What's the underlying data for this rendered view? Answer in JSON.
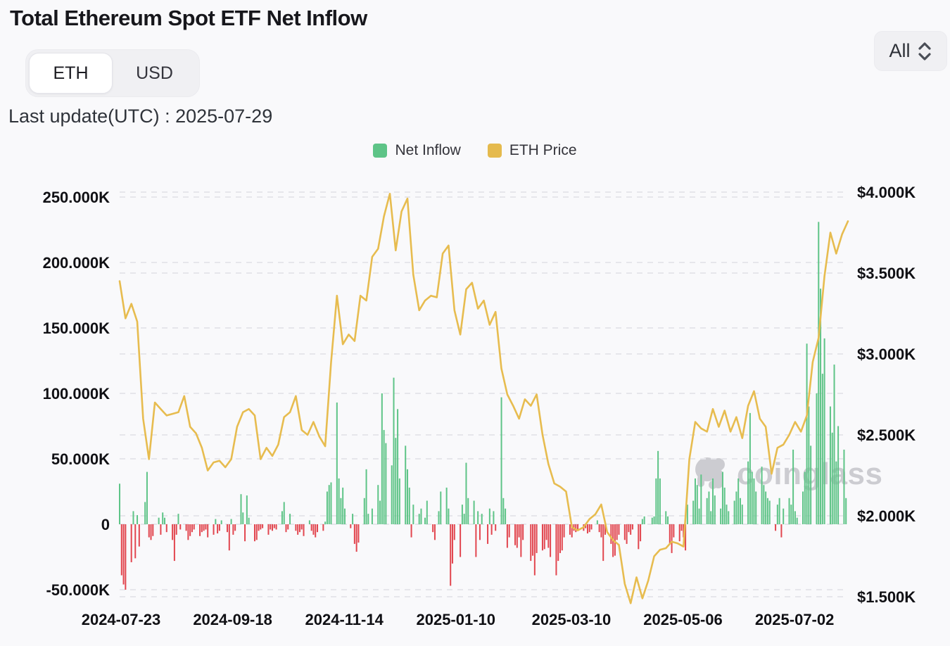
{
  "header": {
    "title": "Total Ethereum Spot ETF Net Inflow"
  },
  "controls": {
    "unit_toggle": {
      "options": [
        "ETH",
        "USD"
      ],
      "active": "ETH"
    },
    "range_select": {
      "value": "All"
    }
  },
  "status": {
    "last_update": "Last update(UTC) : 2025-07-29"
  },
  "legend": {
    "items": [
      {
        "label": "Net Inflow",
        "color": "#5ec487"
      },
      {
        "label": "ETH Price",
        "color": "#e5ba4d"
      }
    ]
  },
  "watermark": {
    "text": "coinglass"
  },
  "colors": {
    "inflow_positive": "#5ec487",
    "inflow_negative": "#e2464f",
    "price_line": "#e7bc4f",
    "gridline": "#e6e6eb",
    "axis_text": "#101014"
  },
  "chart_data": {
    "type": "bar+line",
    "title": "Total Ethereum Spot ETF Net Inflow",
    "start_date": "2024-07-23",
    "end_date": "2025-07-29",
    "grid": {
      "dashed": true,
      "color": "#e6e6eb"
    },
    "legend_position": "top-center",
    "x_tick_labels": [
      "2024-07-23",
      "2024-09-18",
      "2024-11-14",
      "2025-01-10",
      "2025-03-10",
      "2025-05-06",
      "2025-07-02"
    ],
    "x_tick_day_offsets": [
      0,
      57,
      114,
      171,
      230,
      287,
      344
    ],
    "left_axis": {
      "name": "Net Inflow",
      "unit": "thousand ETH",
      "tick_labels": [
        "250.000K",
        "200.000K",
        "150.000K",
        "100.000K",
        "50.000K",
        "0",
        "-50.000K"
      ],
      "tick_values": [
        250,
        200,
        150,
        100,
        50,
        0,
        -50
      ],
      "range": [
        -50,
        250
      ]
    },
    "right_axis": {
      "name": "ETH Price",
      "unit": "$K",
      "tick_labels": [
        "$4.000K",
        "$3.500K",
        "$3.000K",
        "$2.500K",
        "$2.000K",
        "$1.500K"
      ],
      "tick_values": [
        4.0,
        3.5,
        3.0,
        2.5,
        2.0,
        1.5
      ],
      "range": [
        1.5,
        4.0
      ]
    },
    "series": [
      {
        "name": "Net Inflow",
        "type": "bar",
        "unit": "thousand ETH",
        "sampling": "daily (weekends zero), values estimated from chart",
        "values": [
          31,
          -39,
          -46,
          -50,
          0,
          0,
          -29,
          10,
          -26,
          7,
          -17,
          0,
          0,
          17,
          40,
          -10,
          -12,
          -9,
          0,
          0,
          5,
          -8,
          9,
          5,
          -6,
          0,
          0,
          -12,
          -28,
          -8,
          8,
          -4,
          0,
          0,
          -5,
          -12,
          -9,
          -6,
          -4,
          0,
          0,
          -9,
          -6,
          -5,
          -4,
          -10,
          0,
          0,
          -8,
          4,
          -7,
          -5,
          3,
          0,
          0,
          -6,
          -20,
          4,
          -8,
          -5,
          0,
          0,
          23,
          9,
          -13,
          22,
          5,
          0,
          0,
          -13,
          -12,
          -5,
          -4,
          -3,
          0,
          0,
          -8,
          -4,
          -5,
          -3,
          -4,
          0,
          0,
          10,
          17,
          -6,
          -4,
          8,
          0,
          0,
          -5,
          -8,
          -6,
          -4,
          -9,
          0,
          0,
          3,
          -5,
          -8,
          -10,
          -6,
          0,
          0,
          -5,
          2,
          25,
          30,
          32,
          0,
          0,
          93,
          35,
          20,
          28,
          12,
          0,
          0,
          -3,
          8,
          -15,
          -21,
          -14,
          0,
          0,
          20,
          42,
          8,
          0,
          12,
          0,
          0,
          30,
          18,
          100,
          72,
          62,
          0,
          0,
          45,
          112,
          66,
          88,
          35,
          0,
          0,
          60,
          42,
          28,
          -10,
          15,
          0,
          0,
          8,
          12,
          0,
          5,
          18,
          0,
          0,
          -6,
          -12,
          0,
          10,
          25,
          0,
          0,
          28,
          12,
          -47,
          -30,
          -12,
          0,
          0,
          -25,
          15,
          8,
          47,
          20,
          0,
          0,
          18,
          -25,
          10,
          -12,
          8,
          0,
          0,
          -15,
          12,
          -8,
          10,
          -5,
          0,
          0,
          97,
          20,
          12,
          -18,
          -10,
          0,
          0,
          -16,
          -18,
          -10,
          -25,
          -12,
          0,
          0,
          0,
          -28,
          -24,
          -39,
          -22,
          0,
          0,
          -20,
          -19,
          -12,
          -18,
          -25,
          0,
          0,
          -39,
          -28,
          -22,
          -20,
          -10,
          0,
          0,
          -8,
          -10,
          -5,
          -6,
          -4,
          0,
          0,
          -5,
          -3,
          -7,
          -6,
          -4,
          0,
          0,
          3,
          -6,
          -10,
          -28,
          -8,
          0,
          0,
          -15,
          -25,
          -24,
          -12,
          -8,
          0,
          0,
          -12,
          -15,
          -6,
          -8,
          -4,
          0,
          0,
          -19,
          -13,
          4,
          6,
          0,
          0,
          0,
          5,
          6,
          35,
          56,
          35,
          0,
          0,
          10,
          6,
          -15,
          -22,
          -10,
          0,
          0,
          -13,
          -5,
          -10,
          -20,
          15,
          0,
          0,
          18,
          35,
          30,
          12,
          38,
          0,
          0,
          20,
          25,
          10,
          35,
          22,
          0,
          0,
          12,
          40,
          28,
          15,
          10,
          0,
          0,
          18,
          25,
          35,
          20,
          15,
          0,
          0,
          48,
          85,
          40,
          35,
          25,
          0,
          0,
          44,
          30,
          25,
          20,
          18,
          0,
          0,
          -5,
          15,
          20,
          -10,
          12,
          0,
          0,
          20,
          15,
          57,
          10,
          5,
          0,
          0,
          25,
          40,
          138,
          90,
          60,
          0,
          0,
          100,
          231,
          180,
          115,
          142,
          0,
          0,
          90,
          70,
          122,
          48,
          75,
          0,
          0,
          57,
          20
        ]
      },
      {
        "name": "ETH Price",
        "type": "line",
        "unit": "$K",
        "sampling": "every 3 days, values estimated from chart",
        "values": [
          3.45,
          3.22,
          3.31,
          3.2,
          2.6,
          2.35,
          2.7,
          2.66,
          2.62,
          2.63,
          2.64,
          2.74,
          2.55,
          2.51,
          2.42,
          2.28,
          2.33,
          2.34,
          2.3,
          2.35,
          2.55,
          2.64,
          2.66,
          2.62,
          2.35,
          2.42,
          2.37,
          2.44,
          2.61,
          2.64,
          2.74,
          2.53,
          2.5,
          2.58,
          2.49,
          2.43,
          2.95,
          3.36,
          3.06,
          3.12,
          3.08,
          3.36,
          3.33,
          3.6,
          3.65,
          3.85,
          3.99,
          3.64,
          3.88,
          3.96,
          3.49,
          3.27,
          3.33,
          3.36,
          3.35,
          3.62,
          3.67,
          3.27,
          3.12,
          3.4,
          3.44,
          3.28,
          3.33,
          3.18,
          3.26,
          2.91,
          2.75,
          2.68,
          2.6,
          2.72,
          2.68,
          2.75,
          2.5,
          2.32,
          2.2,
          2.18,
          2.15,
          1.93,
          1.91,
          1.93,
          1.98,
          2.01,
          2.07,
          1.9,
          1.85,
          1.82,
          1.58,
          1.46,
          1.62,
          1.49,
          1.6,
          1.75,
          1.79,
          1.8,
          1.84,
          1.83,
          1.81,
          2.35,
          2.58,
          2.54,
          2.52,
          2.66,
          2.55,
          2.65,
          2.52,
          2.61,
          2.48,
          2.68,
          2.77,
          2.6,
          2.55,
          2.26,
          2.42,
          2.44,
          2.5,
          2.58,
          2.52,
          2.62,
          2.95,
          3.1,
          3.48,
          3.75,
          3.62,
          3.74,
          3.82
        ]
      }
    ]
  }
}
